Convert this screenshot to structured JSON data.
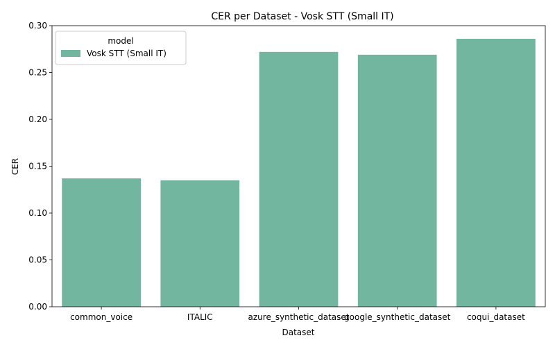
{
  "chart_data": {
    "type": "bar",
    "title": "CER per Dataset - Vosk STT (Small IT)",
    "xlabel": "Dataset",
    "ylabel": "CER",
    "categories": [
      "common_voice",
      "ITALIC",
      "azure_synthetic_dataset",
      "google_synthetic_dataset",
      "coqui_dataset"
    ],
    "series": [
      {
        "name": "Vosk STT (Small IT)",
        "values": [
          0.137,
          0.135,
          0.272,
          0.269,
          0.286
        ],
        "color": "#73b6a0"
      }
    ],
    "ylim": [
      0,
      0.3
    ],
    "yticks": [
      "0.00",
      "0.05",
      "0.10",
      "0.15",
      "0.20",
      "0.25",
      "0.30"
    ],
    "legend": {
      "title": "model",
      "placement": "top-left"
    },
    "grid": false
  }
}
